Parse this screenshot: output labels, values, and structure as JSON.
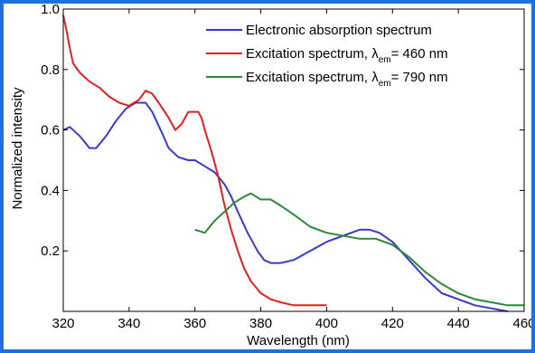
{
  "chart_data": {
    "type": "line",
    "xlabel": "Wavelength (nm)",
    "ylabel": "Normalized intensity",
    "xlim": [
      320,
      460
    ],
    "ylim": [
      0,
      1.0
    ],
    "x_ticks": [
      320,
      340,
      360,
      380,
      400,
      420,
      440,
      460
    ],
    "y_ticks": [
      0.2,
      0.4,
      0.6,
      0.8,
      1.0
    ],
    "x_tick_labels": [
      "320",
      "340",
      "360",
      "380",
      "400",
      "420",
      "440",
      "460"
    ],
    "y_tick_labels": [
      "0.2",
      "0.4",
      "0.6",
      "0.8",
      "1.0"
    ],
    "grid": false,
    "legend_position": "top-right",
    "series": [
      {
        "name": "Electronic absorption spectrum",
        "legend_main": "Electronic absorption spectrum",
        "legend_sub": "",
        "legend_suffix": "",
        "color": "#3a3ac8",
        "x": [
          320,
          322,
          325,
          328,
          330,
          333,
          336,
          339,
          342,
          345,
          347,
          350,
          352,
          355,
          358,
          360,
          363,
          366,
          369,
          371,
          373,
          376,
          379,
          381,
          383,
          386,
          390,
          395,
          400,
          405,
          410,
          413,
          416,
          420,
          425,
          430,
          435,
          440,
          445,
          450,
          455
        ],
        "y": [
          0.6,
          0.61,
          0.58,
          0.54,
          0.54,
          0.58,
          0.63,
          0.67,
          0.69,
          0.69,
          0.66,
          0.59,
          0.54,
          0.51,
          0.5,
          0.5,
          0.48,
          0.46,
          0.42,
          0.38,
          0.33,
          0.26,
          0.2,
          0.17,
          0.16,
          0.16,
          0.17,
          0.2,
          0.23,
          0.25,
          0.27,
          0.27,
          0.26,
          0.23,
          0.17,
          0.11,
          0.06,
          0.04,
          0.02,
          0.01,
          0.0
        ]
      },
      {
        "name": "Excitation spectrum, λem = 460 nm",
        "legend_main": "Excitation spectrum, λ",
        "legend_sub": "em",
        "legend_suffix": "= 460 nm",
        "color": "#e02020",
        "x": [
          320,
          321,
          322,
          323,
          325,
          328,
          331,
          334,
          337,
          340,
          343,
          345,
          347,
          349,
          352,
          354,
          356,
          358,
          360,
          361,
          362,
          363,
          365,
          367,
          369,
          371,
          373,
          375,
          377,
          380,
          383,
          386,
          390,
          395,
          400
        ],
        "y": [
          0.98,
          0.93,
          0.87,
          0.82,
          0.79,
          0.76,
          0.74,
          0.71,
          0.69,
          0.68,
          0.7,
          0.73,
          0.72,
          0.69,
          0.64,
          0.6,
          0.62,
          0.66,
          0.66,
          0.66,
          0.64,
          0.6,
          0.53,
          0.45,
          0.35,
          0.27,
          0.2,
          0.14,
          0.1,
          0.06,
          0.04,
          0.03,
          0.02,
          0.02,
          0.02
        ]
      },
      {
        "name": "Excitation spectrum, λem = 790 nm",
        "legend_main": "Excitation spectrum, λ",
        "legend_sub": "em",
        "legend_suffix": "= 790 nm",
        "color": "#2a8a3a",
        "x": [
          360,
          363,
          366,
          369,
          372,
          375,
          377,
          380,
          383,
          386,
          390,
          395,
          400,
          405,
          410,
          415,
          420,
          425,
          430,
          435,
          440,
          445,
          450,
          455,
          460
        ],
        "y": [
          0.27,
          0.26,
          0.3,
          0.33,
          0.36,
          0.38,
          0.39,
          0.37,
          0.37,
          0.35,
          0.32,
          0.28,
          0.26,
          0.25,
          0.24,
          0.24,
          0.22,
          0.18,
          0.13,
          0.09,
          0.06,
          0.04,
          0.03,
          0.02,
          0.02
        ]
      }
    ]
  }
}
